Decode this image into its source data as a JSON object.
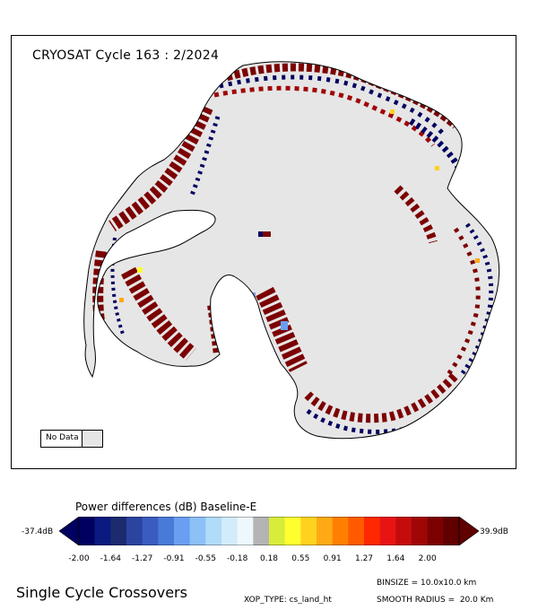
{
  "map": {
    "title": "CRYOSAT Cycle 163 : 2/2024",
    "no_data_label": "No Data",
    "no_data_color": "#e6e6e6",
    "region": "Antarctica"
  },
  "legend": {
    "title": "Power differences (dB) Baseline-E",
    "min_label": "-37.4dB",
    "max_label": "39.9dB",
    "tick_labels": [
      "-2.00",
      "-1.64",
      "-1.27",
      "-0.91",
      "-0.55",
      "-0.18",
      "0.18",
      "0.55",
      "0.91",
      "1.27",
      "1.64",
      "2.00"
    ],
    "colors": [
      "#000060",
      "#0a1a80",
      "#1c2a6e",
      "#2a44a0",
      "#3a5cc0",
      "#4a7ad8",
      "#6a9ef0",
      "#8cc0f6",
      "#b0dcfa",
      "#d2ecfc",
      "#eef7fc",
      "#b4b4b4",
      "#d8ec3a",
      "#ffff30",
      "#ffd21e",
      "#ffaa14",
      "#ff8000",
      "#ff5a00",
      "#ff2800",
      "#e81414",
      "#c40c0c",
      "#a00606",
      "#7c0202",
      "#600000"
    ]
  },
  "footer": {
    "title": "Single Cycle Crossovers",
    "binsize": "BINSIZE = 10.0x10.0 km",
    "xop_type": "XOP_TYPE: cs_land_ht",
    "smooth_radius": "SMOOTH RADIUS =  20.0 Km"
  }
}
